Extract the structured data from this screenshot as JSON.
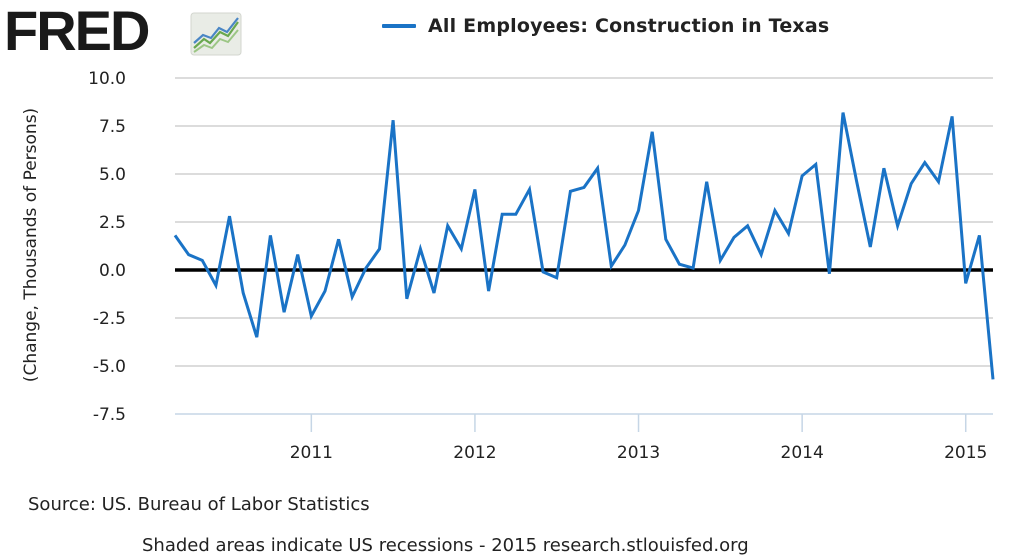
{
  "logo": {
    "text": "FRED",
    "badge_icon": "trend-lines-icon"
  },
  "legend": {
    "label": "All Employees: Construction in Texas",
    "color": "#1a73c6"
  },
  "source": "Source: US. Bureau of Labor Statistics",
  "footer": "Shaded areas indicate US recessions - 2015 research.stlouisfed.org",
  "chart_data": {
    "type": "line",
    "title": "",
    "xlabel": "",
    "ylabel": "(Change, Thousands of Persons)",
    "ylim": [
      -7.5,
      10.0
    ],
    "xlim": [
      "2010-03",
      "2015-03"
    ],
    "yticks": [
      "10.0",
      "7.5",
      "5.0",
      "2.5",
      "0.0",
      "-2.5",
      "-5.0",
      "-7.5"
    ],
    "xticks": [
      "2011",
      "2012",
      "2013",
      "2014",
      "2015"
    ],
    "grid": true,
    "legend_position": "top",
    "zero_line": true,
    "series": [
      {
        "name": "All Employees: Construction in Texas",
        "color": "#1a73c6",
        "x": [
          "2010-03",
          "2010-04",
          "2010-05",
          "2010-06",
          "2010-07",
          "2010-08",
          "2010-09",
          "2010-10",
          "2010-11",
          "2010-12",
          "2011-01",
          "2011-02",
          "2011-03",
          "2011-04",
          "2011-05",
          "2011-06",
          "2011-07",
          "2011-08",
          "2011-09",
          "2011-10",
          "2011-11",
          "2011-12",
          "2012-01",
          "2012-02",
          "2012-03",
          "2012-04",
          "2012-05",
          "2012-06",
          "2012-07",
          "2012-08",
          "2012-09",
          "2012-10",
          "2012-11",
          "2012-12",
          "2013-01",
          "2013-02",
          "2013-03",
          "2013-04",
          "2013-05",
          "2013-06",
          "2013-07",
          "2013-08",
          "2013-09",
          "2013-10",
          "2013-11",
          "2013-12",
          "2014-01",
          "2014-02",
          "2014-03",
          "2014-04",
          "2014-05",
          "2014-06",
          "2014-07",
          "2014-08",
          "2014-09",
          "2014-10",
          "2014-11",
          "2014-12",
          "2015-01",
          "2015-02",
          "2015-03"
        ],
        "values": [
          1.8,
          0.8,
          0.5,
          -0.8,
          2.8,
          -1.2,
          -3.5,
          1.8,
          -2.2,
          0.8,
          -2.4,
          -1.1,
          1.6,
          -1.4,
          0.1,
          1.1,
          7.8,
          -1.5,
          1.1,
          -1.2,
          2.3,
          1.1,
          4.2,
          -1.1,
          2.9,
          2.9,
          4.2,
          -0.1,
          -0.4,
          4.1,
          4.3,
          5.3,
          0.2,
          1.3,
          3.1,
          7.2,
          1.6,
          0.3,
          0.1,
          4.6,
          0.5,
          1.7,
          2.3,
          0.8,
          3.1,
          1.9,
          4.9,
          5.5,
          -0.2,
          8.2,
          4.6,
          1.2,
          5.3,
          2.3,
          4.5,
          5.6,
          4.6,
          8.0,
          -0.7,
          1.8,
          -5.7
        ]
      }
    ]
  }
}
